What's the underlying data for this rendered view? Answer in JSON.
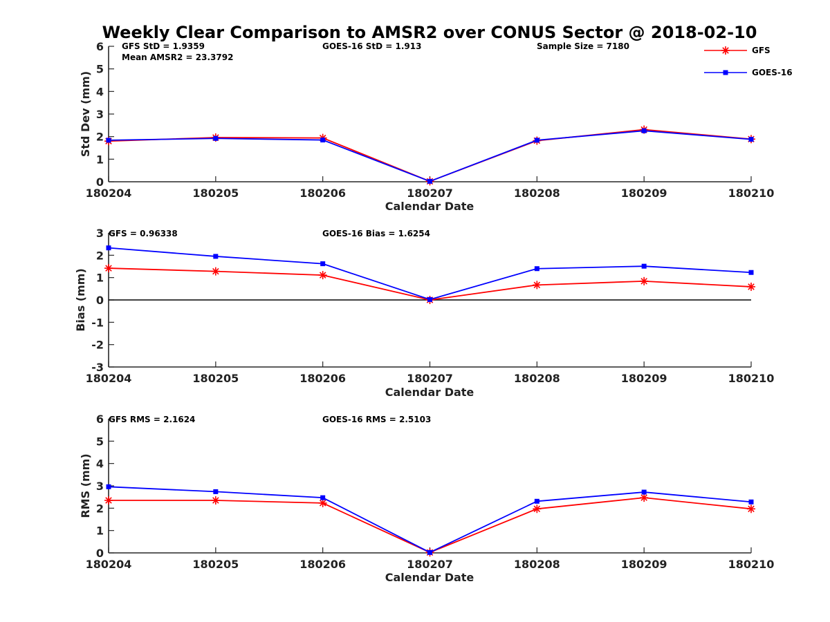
{
  "figure_title": "Weekly Clear Comparison to AMSR2 over CONUS Sector @ 2018-02-10",
  "legend": {
    "entries": [
      "GFS",
      "GOES-16"
    ],
    "placement": "top-right"
  },
  "colors": {
    "gfs": "#ff0000",
    "goes16": "#0000ff",
    "zero_line": "#000000"
  },
  "chart_data": [
    {
      "type": "line",
      "title": "",
      "xlabel": "Calendar Date",
      "ylabel": "Std Dev (mm)",
      "categories": [
        "180204",
        "180205",
        "180206",
        "180207",
        "180208",
        "180209",
        "180210"
      ],
      "ylim": [
        0,
        6
      ],
      "yticks": [
        "0",
        "1",
        "2",
        "3",
        "4",
        "5",
        "6"
      ],
      "series": [
        {
          "name": "GFS",
          "marker": "asterisk",
          "values": [
            1.8,
            1.96,
            1.94,
            0.02,
            1.82,
            2.31,
            1.89
          ]
        },
        {
          "name": "GOES-16",
          "marker": "square",
          "values": [
            1.84,
            1.92,
            1.85,
            0.02,
            1.84,
            2.26,
            1.88
          ]
        }
      ],
      "annotations": [
        "GFS StD = 1.9359",
        "Mean AMSR2 = 23.3792",
        "GOES-16 StD = 1.913",
        "Sample Size = 7180"
      ]
    },
    {
      "type": "line",
      "title": "",
      "xlabel": "Calendar Date",
      "ylabel": "Bias (mm)",
      "categories": [
        "180204",
        "180205",
        "180206",
        "180207",
        "180208",
        "180209",
        "180210"
      ],
      "ylim": [
        -3,
        3
      ],
      "yticks": [
        "-3",
        "-2",
        "-1",
        "0",
        "1",
        "2",
        "3"
      ],
      "zero_line": true,
      "series": [
        {
          "name": "GFS",
          "marker": "asterisk",
          "values": [
            1.42,
            1.28,
            1.11,
            0.0,
            0.67,
            0.84,
            0.59
          ]
        },
        {
          "name": "GOES-16",
          "marker": "square",
          "values": [
            2.33,
            1.95,
            1.62,
            0.02,
            1.4,
            1.51,
            1.23
          ]
        }
      ],
      "annotations": [
        "GFS = 0.96338",
        "GOES-16 Bias  = 1.6254"
      ]
    },
    {
      "type": "line",
      "title": "",
      "xlabel": "Calendar Date",
      "ylabel": "RMS (mm)",
      "categories": [
        "180204",
        "180205",
        "180206",
        "180207",
        "180208",
        "180209",
        "180210"
      ],
      "ylim": [
        0,
        6
      ],
      "yticks": [
        "0",
        "1",
        "2",
        "3",
        "4",
        "5",
        "6"
      ],
      "series": [
        {
          "name": "GFS",
          "marker": "asterisk",
          "values": [
            2.35,
            2.35,
            2.23,
            0.02,
            1.97,
            2.47,
            1.97
          ]
        },
        {
          "name": "GOES-16",
          "marker": "square",
          "values": [
            2.96,
            2.74,
            2.47,
            0.02,
            2.31,
            2.72,
            2.28
          ]
        }
      ],
      "annotations": [
        "GFS RMS = 2.1624",
        "GOES-16 RMS = 2.5103"
      ]
    }
  ]
}
